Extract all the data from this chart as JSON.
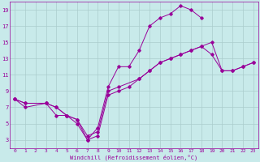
{
  "xlabel": "Windchill (Refroidissement éolien,°C)",
  "bg_color": "#c8eaea",
  "line_color": "#990099",
  "grid_color": "#aacccc",
  "xlim": [
    -0.5,
    23.5
  ],
  "ylim": [
    2,
    20
  ],
  "xticks": [
    0,
    1,
    2,
    3,
    4,
    5,
    6,
    7,
    8,
    9,
    10,
    11,
    12,
    13,
    14,
    15,
    16,
    17,
    18,
    19,
    20,
    21,
    22,
    23
  ],
  "yticks": [
    3,
    5,
    7,
    9,
    11,
    13,
    15,
    17,
    19
  ],
  "line1_x": [
    0,
    1,
    3,
    4,
    5,
    6,
    7,
    8,
    9,
    10,
    11,
    12,
    13,
    14,
    15,
    16,
    17,
    18
  ],
  "line1_y": [
    8,
    7.5,
    7.5,
    6,
    6,
    5.5,
    3,
    4.5,
    9.5,
    12,
    12,
    14,
    17,
    18,
    18.5,
    19.5,
    19,
    18
  ],
  "line2_x": [
    0,
    1,
    3,
    4,
    5,
    6,
    7,
    8,
    9,
    10,
    12,
    13,
    14,
    15,
    16,
    17,
    18,
    19,
    20,
    21,
    22,
    23
  ],
  "line2_y": [
    8,
    7.5,
    7.5,
    7,
    6,
    5.5,
    3.5,
    4,
    9,
    9.5,
    10.5,
    11.5,
    12.5,
    13,
    13.5,
    14,
    14.5,
    13.5,
    11.5,
    11.5,
    12,
    12.5
  ],
  "line3_x": [
    0,
    1,
    3,
    4,
    5,
    6,
    7,
    8,
    9,
    10,
    11,
    12,
    13,
    14,
    15,
    16,
    17,
    18,
    19,
    20,
    21,
    22,
    23
  ],
  "line3_y": [
    8,
    7,
    7.5,
    7,
    6,
    5,
    3,
    3.5,
    8.5,
    9,
    9.5,
    10.5,
    11.5,
    12.5,
    13,
    13.5,
    14,
    14.5,
    15,
    11.5,
    11.5,
    12,
    12.5
  ]
}
